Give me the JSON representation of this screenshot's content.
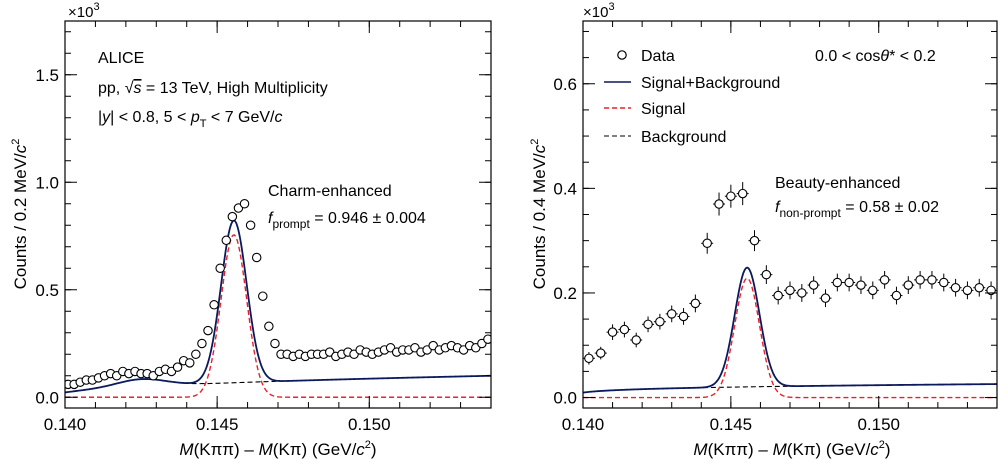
{
  "chart_data": [
    {
      "type": "scatter",
      "panel": "left",
      "multiplier_label": "×10",
      "multiplier_exp": "3",
      "xlabel": {
        "m1": "M",
        "a1": "(Kππ) – ",
        "m2": "M",
        "a2": "(Kπ) (GeV/",
        "c": "c",
        "sup": "2",
        "close": ")"
      },
      "ylabel": {
        "pre": "Counts / 0.2 MeV/",
        "c": "c",
        "sup": "2"
      },
      "xlim": [
        0.14,
        0.154
      ],
      "ylim": [
        -0.05,
        1.75
      ],
      "xticks": [
        0.14,
        0.145,
        0.15
      ],
      "xtick_labels": [
        "0.140",
        "0.145",
        "0.150"
      ],
      "yticks": [
        0.0,
        0.5,
        1.0,
        1.5
      ],
      "ytick_labels": [
        "0.0",
        "0.5",
        "1.0",
        "1.5"
      ],
      "annotations": {
        "experiment": "ALICE",
        "line2_pre": "pp, ",
        "line2_sqrt": "s",
        "line2_post": " = 13 TeV, High Multiplicity",
        "line3_y": "y",
        "line3_mid": "| < 0.8,  5 < ",
        "line3_p": "p",
        "line3_T": "T",
        "line3_post": " <  7 GeV/",
        "line3_c": "c",
        "sample": "Charm-enhanced",
        "f_symbol": "f",
        "f_sub": "prompt",
        "f_value": " = 0.946 ± 0.004"
      },
      "model": {
        "x0": 0.14555,
        "sigma_sig": 0.00042,
        "A_sig": 0.755,
        "A_sig_core": 0.78,
        "bkg_a": 0.3,
        "bkg_x0": 0.1395,
        "bkg_p": 0.45,
        "bump_amp": 0.035,
        "bump_center": 0.1425,
        "bump_width": 0.0008
      },
      "data_x": [
        0.1401,
        0.1403,
        0.1405,
        0.1407,
        0.1409,
        0.1411,
        0.1413,
        0.1415,
        0.1417,
        0.1419,
        0.1421,
        0.1423,
        0.1425,
        0.1427,
        0.1429,
        0.1431,
        0.1433,
        0.1435,
        0.1437,
        0.1439,
        0.1441,
        0.1443,
        0.1445,
        0.1447,
        0.1449,
        0.1451,
        0.1453,
        0.1455,
        0.1457,
        0.1459,
        0.1461,
        0.1463,
        0.1465,
        0.1467,
        0.1469,
        0.1471,
        0.1473,
        0.1475,
        0.1477,
        0.1479,
        0.1481,
        0.1483,
        0.1485,
        0.1487,
        0.1489,
        0.1491,
        0.1493,
        0.1495,
        0.1497,
        0.1499,
        0.1501,
        0.1503,
        0.1505,
        0.1507,
        0.1509,
        0.1511,
        0.1513,
        0.1515,
        0.1517,
        0.1519,
        0.1521,
        0.1523,
        0.1525,
        0.1527,
        0.1529,
        0.1531,
        0.1533,
        0.1535,
        0.1537,
        0.1539
      ],
      "data_y": [
        0.06,
        0.06,
        0.07,
        0.08,
        0.08,
        0.09,
        0.1,
        0.11,
        0.1,
        0.12,
        0.11,
        0.12,
        0.11,
        0.11,
        0.1,
        0.12,
        0.13,
        0.12,
        0.14,
        0.17,
        0.16,
        0.2,
        0.25,
        0.31,
        0.43,
        0.6,
        0.73,
        0.84,
        0.88,
        0.9,
        0.8,
        0.65,
        0.47,
        0.33,
        0.25,
        0.2,
        0.2,
        0.19,
        0.2,
        0.19,
        0.2,
        0.2,
        0.2,
        0.21,
        0.19,
        0.2,
        0.21,
        0.2,
        0.22,
        0.21,
        0.2,
        0.21,
        0.22,
        0.23,
        0.21,
        0.22,
        0.22,
        0.23,
        0.21,
        0.22,
        0.24,
        0.22,
        0.23,
        0.24,
        0.23,
        0.22,
        0.24,
        0.23,
        0.25,
        0.27
      ]
    },
    {
      "type": "scatter",
      "panel": "right",
      "multiplier_label": "×10",
      "multiplier_exp": "3",
      "xlabel": {
        "m1": "M",
        "a1": "(Kππ) – ",
        "m2": "M",
        "a2": "(Kπ) (GeV/",
        "c": "c",
        "sup": "2",
        "close": ")"
      },
      "ylabel": {
        "pre": "Counts / 0.4 MeV/",
        "c": "c",
        "sup": "2"
      },
      "xlim": [
        0.14,
        0.154
      ],
      "ylim": [
        -0.02,
        0.72
      ],
      "xticks": [
        0.14,
        0.145,
        0.15
      ],
      "xtick_labels": [
        "0.140",
        "0.145",
        "0.150"
      ],
      "yticks": [
        0.0,
        0.2,
        0.4,
        0.6
      ],
      "ytick_labels": [
        "0.0",
        "0.2",
        "0.4",
        "0.6"
      ],
      "annotations": {
        "cos_pre": "0.0 < cos",
        "cos_theta": "θ",
        "cos_post": "* < 0.2",
        "sample": "Beauty-enhanced",
        "f_symbol": "f",
        "f_sub": "non-prompt",
        "f_value": " = 0.58 ± 0.02"
      },
      "legend": {
        "placement": "top-left",
        "entries": [
          {
            "key": "data",
            "label": "Data"
          },
          {
            "key": "sigbkg",
            "label": "Signal+Background",
            "color": "#0b1a5c"
          },
          {
            "key": "signal",
            "label": "Signal",
            "color": "#e8202a"
          },
          {
            "key": "background",
            "label": "Background",
            "color": "#000000"
          }
        ]
      },
      "model": {
        "x0": 0.14555,
        "sigma_sig": 0.00042,
        "A_sig": 0.228,
        "A_sig_core": 0.235,
        "bkg_a": 0.129,
        "bkg_x0": 0.1397,
        "bkg_p": 0.26,
        "bump_amp": 0.0,
        "bump_center": 0.142,
        "bump_width": 0.001
      },
      "data_x": [
        0.1402,
        0.1406,
        0.141,
        0.1414,
        0.1418,
        0.1422,
        0.1426,
        0.143,
        0.1434,
        0.1438,
        0.1442,
        0.1446,
        0.145,
        0.1454,
        0.1458,
        0.1462,
        0.1466,
        0.147,
        0.1474,
        0.1478,
        0.1482,
        0.1486,
        0.149,
        0.1494,
        0.1498,
        0.1502,
        0.1506,
        0.151,
        0.1514,
        0.1518,
        0.1522,
        0.1526,
        0.153,
        0.1534,
        0.1538
      ],
      "data_y": [
        0.075,
        0.085,
        0.125,
        0.13,
        0.11,
        0.14,
        0.145,
        0.16,
        0.155,
        0.18,
        0.295,
        0.37,
        0.385,
        0.39,
        0.3,
        0.235,
        0.195,
        0.205,
        0.2,
        0.215,
        0.19,
        0.22,
        0.22,
        0.215,
        0.205,
        0.225,
        0.195,
        0.215,
        0.225,
        0.225,
        0.22,
        0.21,
        0.205,
        0.21,
        0.205
      ],
      "data_err": [
        0.012,
        0.012,
        0.015,
        0.015,
        0.014,
        0.015,
        0.015,
        0.016,
        0.016,
        0.017,
        0.02,
        0.022,
        0.022,
        0.022,
        0.02,
        0.018,
        0.017,
        0.017,
        0.017,
        0.017,
        0.017,
        0.017,
        0.017,
        0.017,
        0.017,
        0.017,
        0.017,
        0.017,
        0.017,
        0.017,
        0.017,
        0.017,
        0.017,
        0.017,
        0.017
      ]
    }
  ]
}
